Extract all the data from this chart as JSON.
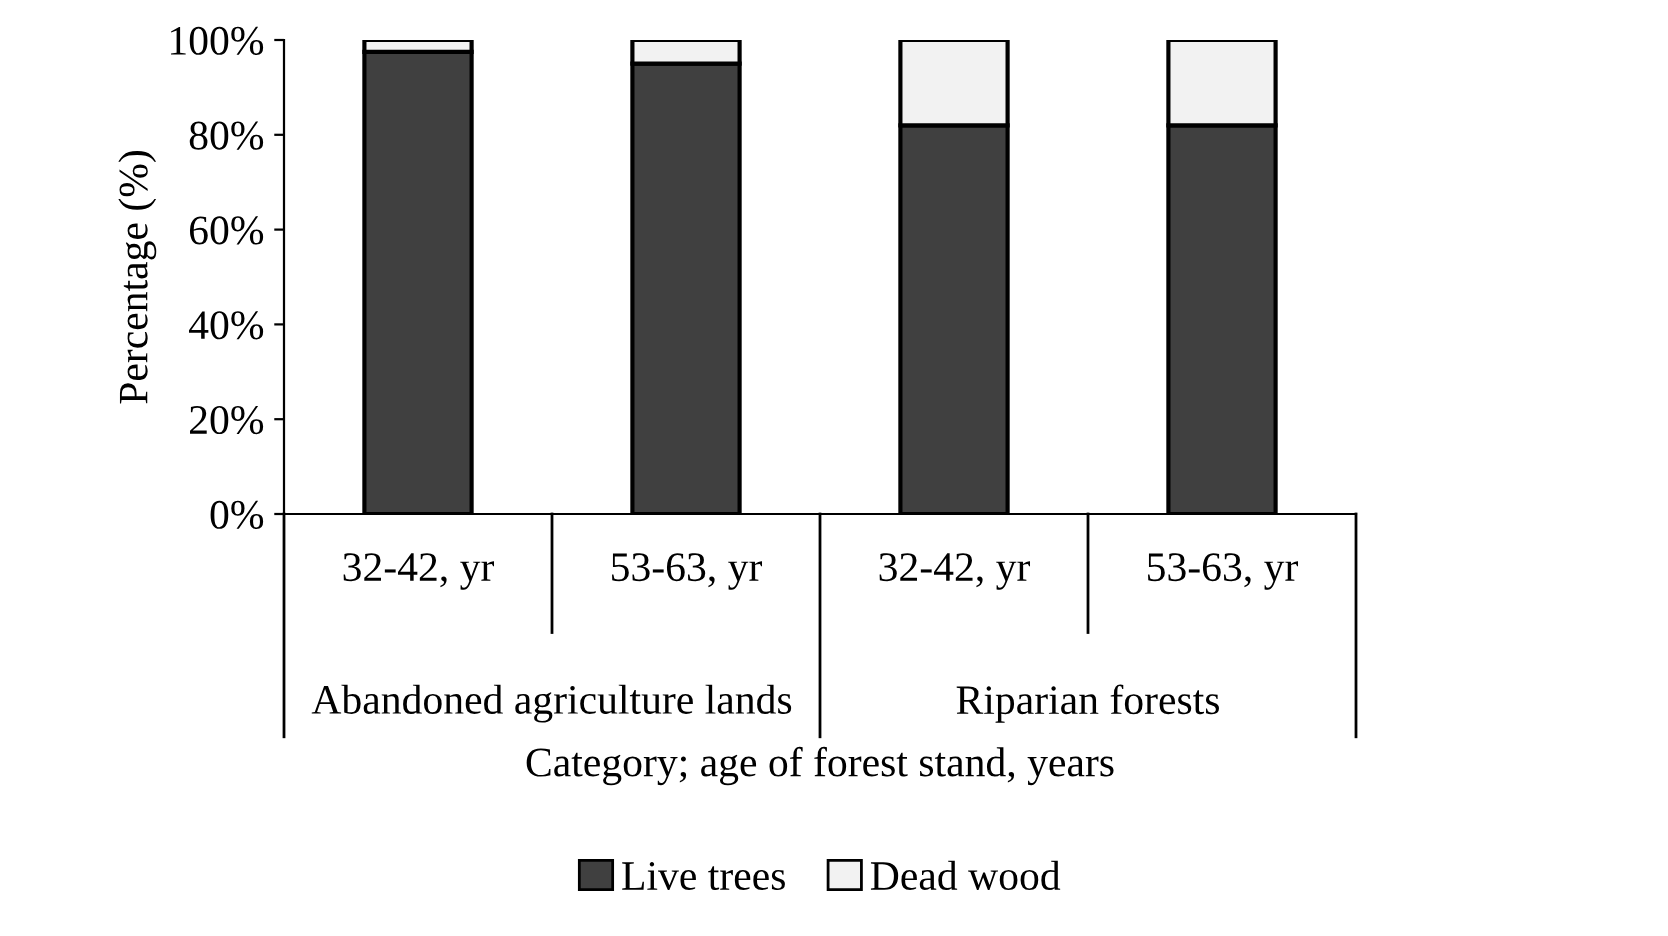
{
  "chart_data": {
    "type": "bar",
    "stacked": true,
    "categories": [
      "32-42, yr",
      "53-63, yr",
      "32-42, yr",
      "53-63, yr"
    ],
    "series": [
      {
        "name": "Live trees",
        "color": "#404040",
        "values": [
          97.5,
          95,
          82,
          82
        ]
      },
      {
        "name": "Dead wood",
        "color": "#f2f2f2",
        "values": [
          2.5,
          5,
          18,
          18
        ]
      }
    ],
    "annotations": [
      "Abandoned agriculture lands",
      "Riparian forests"
    ],
    "xlabel": "Category; age of forest stand, years",
    "ylabel": "Percentage (%)",
    "ylim": [
      0,
      100
    ],
    "yticks": [
      {
        "value": 0,
        "label": "0%"
      },
      {
        "value": 20,
        "label": "20%"
      },
      {
        "value": 40,
        "label": "40%"
      },
      {
        "value": 60,
        "label": "60%"
      },
      {
        "value": 80,
        "label": "80%"
      },
      {
        "value": 100,
        "label": "100%"
      }
    ],
    "grid": false,
    "legend": "bottom"
  }
}
